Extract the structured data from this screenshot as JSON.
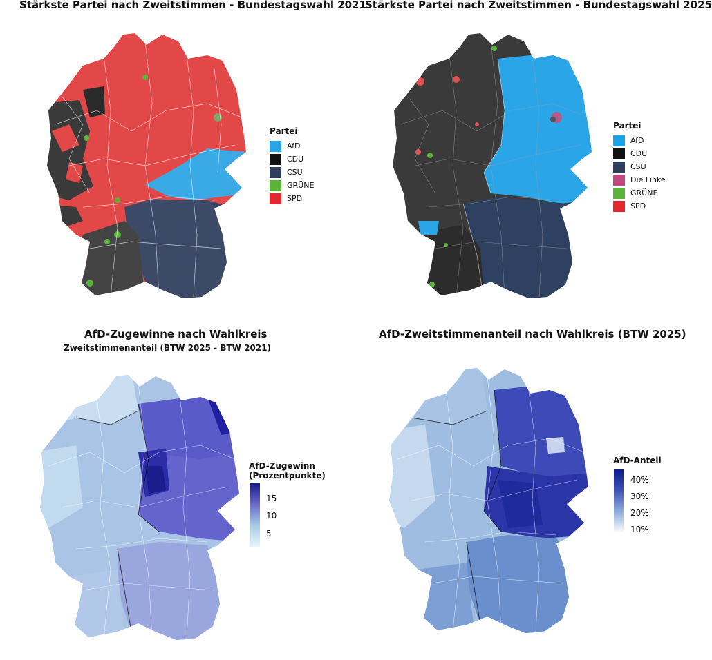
{
  "panels": [
    {
      "title": "Stärkste Partei nach Zweitstimmen - Bundestagswahl 2021",
      "legend": {
        "title": "Partei",
        "items": [
          {
            "label": "AfD",
            "color": "#2ba3e4"
          },
          {
            "label": "CDU",
            "color": "#111111"
          },
          {
            "label": "CSU",
            "color": "#2c3e5c"
          },
          {
            "label": "GRÜNE",
            "color": "#5cb33a"
          },
          {
            "label": "SPD",
            "color": "#e0282e"
          }
        ]
      }
    },
    {
      "title": "Stärkste Partei nach Zweitstimmen - Bundestagswahl 2025",
      "legend": {
        "title": "Partei",
        "items": [
          {
            "label": "AfD",
            "color": "#1aa3e6"
          },
          {
            "label": "CDU",
            "color": "#111111"
          },
          {
            "label": "CSU",
            "color": "#2c3e5c"
          },
          {
            "label": "Die Linke",
            "color": "#c2467f"
          },
          {
            "label": "GRÜNE",
            "color": "#5cb33a"
          },
          {
            "label": "SPD",
            "color": "#e0282e"
          }
        ]
      }
    },
    {
      "title": "AfD-Zugewinne nach Wahlkreis",
      "subtitle": "Zweitstimmenanteil (BTW 2025 - BTW 2021)",
      "legend": {
        "title_line1": "AfD-Zugewinn",
        "title_line2": "(Prozentpunkte)",
        "ticks": [
          "15",
          "10",
          "5"
        ],
        "color_low": "#e8f6fb",
        "color_high": "#1a1a8a"
      }
    },
    {
      "title": "AfD-Zweitstimmenanteil nach Wahlkreis (BTW 2025)",
      "legend": {
        "title": "AfD-Anteil",
        "ticks": [
          "40%",
          "30%",
          "20%",
          "10%"
        ],
        "color_low": "#ffffff",
        "color_high": "#0a1a8c"
      }
    }
  ]
}
